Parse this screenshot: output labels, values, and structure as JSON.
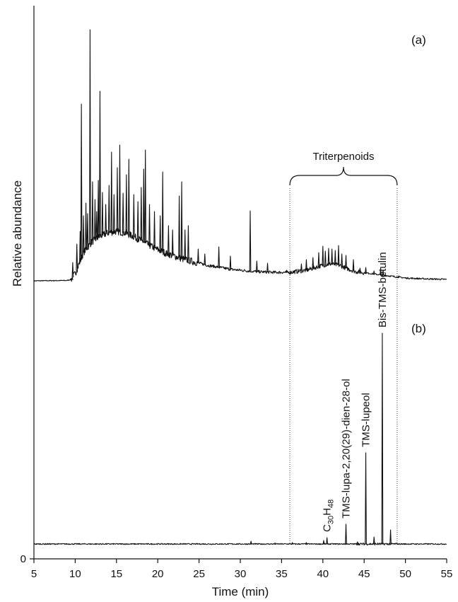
{
  "chart_data": {
    "type": "line",
    "xlabel": "Time (min)",
    "ylabel": "Relative abundance",
    "xlim": [
      5,
      55
    ],
    "x_ticks": [
      "5",
      "10",
      "15",
      "20",
      "25",
      "30",
      "35",
      "40",
      "45",
      "50",
      "55"
    ],
    "y_tick_labels": [
      "0"
    ],
    "grid": false,
    "region": {
      "label": "Triterpenoids",
      "x_start": 36,
      "x_end": 49
    },
    "series": [
      {
        "name": "(a)",
        "baseline": 0,
        "hump": [
          [
            5.0,
            0
          ],
          [
            9.0,
            0.5
          ],
          [
            9.5,
            2
          ],
          [
            10.0,
            10
          ],
          [
            10.5,
            25
          ],
          [
            11.0,
            40
          ],
          [
            12.0,
            55
          ],
          [
            13.0,
            63
          ],
          [
            14.0,
            68
          ],
          [
            15.0,
            70
          ],
          [
            16.0,
            68
          ],
          [
            17.0,
            63
          ],
          [
            18.0,
            57
          ],
          [
            19.0,
            50
          ],
          [
            20.0,
            44
          ],
          [
            21.0,
            39
          ],
          [
            22.0,
            35
          ],
          [
            23.0,
            31
          ],
          [
            24.0,
            28
          ],
          [
            25.0,
            25
          ],
          [
            26.0,
            22
          ],
          [
            27.0,
            20
          ],
          [
            28.0,
            18
          ],
          [
            29.0,
            16
          ],
          [
            30.0,
            15
          ],
          [
            32.0,
            13
          ],
          [
            34.0,
            12
          ],
          [
            36.0,
            12
          ],
          [
            38.0,
            15
          ],
          [
            40.0,
            22
          ],
          [
            41.0,
            24
          ],
          [
            42.0,
            22
          ],
          [
            43.0,
            17
          ],
          [
            44.0,
            13
          ],
          [
            46.0,
            10
          ],
          [
            48.0,
            7
          ],
          [
            50.0,
            4
          ],
          [
            52.0,
            3
          ],
          [
            55.0,
            2
          ]
        ],
        "peaks": [
          [
            9.7,
            26
          ],
          [
            10.2,
            52
          ],
          [
            10.6,
            70
          ],
          [
            10.75,
            250
          ],
          [
            11.0,
            92
          ],
          [
            11.3,
            110
          ],
          [
            11.5,
            95
          ],
          [
            11.8,
            355
          ],
          [
            12.1,
            140
          ],
          [
            12.4,
            115
          ],
          [
            12.6,
            98
          ],
          [
            12.8,
            142
          ],
          [
            13.0,
            268
          ],
          [
            13.3,
            125
          ],
          [
            13.7,
            108
          ],
          [
            14.1,
            135
          ],
          [
            14.4,
            182
          ],
          [
            14.7,
            122
          ],
          [
            15.1,
            160
          ],
          [
            15.4,
            192
          ],
          [
            15.8,
            124
          ],
          [
            16.2,
            150
          ],
          [
            16.5,
            172
          ],
          [
            17.1,
            122
          ],
          [
            17.6,
            112
          ],
          [
            18.0,
            132
          ],
          [
            18.3,
            158
          ],
          [
            18.5,
            185
          ],
          [
            19.0,
            108
          ],
          [
            19.6,
            98
          ],
          [
            20.3,
            92
          ],
          [
            20.6,
            154
          ],
          [
            21.3,
            78
          ],
          [
            21.8,
            72
          ],
          [
            22.6,
            120
          ],
          [
            22.9,
            140
          ],
          [
            23.3,
            72
          ],
          [
            23.7,
            78
          ],
          [
            24.9,
            45
          ],
          [
            25.7,
            38
          ],
          [
            27.4,
            48
          ],
          [
            28.8,
            35
          ],
          [
            31.2,
            99
          ],
          [
            32.0,
            28
          ],
          [
            33.3,
            25
          ],
          [
            35.6,
            15
          ],
          [
            37.4,
            24
          ],
          [
            38.0,
            30
          ],
          [
            38.8,
            33
          ],
          [
            39.5,
            40
          ],
          [
            40.0,
            49
          ],
          [
            40.3,
            42
          ],
          [
            40.7,
            46
          ],
          [
            41.1,
            45
          ],
          [
            41.5,
            43
          ],
          [
            41.9,
            50
          ],
          [
            42.3,
            38
          ],
          [
            42.8,
            36
          ],
          [
            43.7,
            30
          ],
          [
            44.5,
            18
          ],
          [
            45.2,
            19
          ],
          [
            46.2,
            14
          ],
          [
            47.0,
            18
          ],
          [
            47.3,
            15
          ],
          [
            49.2,
            7
          ]
        ]
      },
      {
        "name": "(b)",
        "baseline": 0,
        "hump": [
          [
            5.0,
            0
          ],
          [
            55.0,
            0
          ]
        ],
        "peaks": [
          [
            31.3,
            4
          ],
          [
            34.2,
            1.5
          ],
          [
            36.3,
            2
          ],
          [
            38.0,
            2
          ],
          [
            40.1,
            5
          ],
          [
            40.5,
            9
          ],
          [
            42.8,
            28
          ],
          [
            44.2,
            3
          ],
          [
            45.2,
            129
          ],
          [
            46.2,
            10
          ],
          [
            47.2,
            298
          ],
          [
            48.2,
            20
          ]
        ],
        "annotations": [
          {
            "x": 40.5,
            "label_main": "C",
            "label_sub1": "30",
            "label_mid": "H",
            "label_sub2": "48"
          },
          {
            "x": 42.8,
            "label": "TMS-lupa-2,20(29)-dien-28-ol"
          },
          {
            "x": 45.2,
            "label": "TMS-lupeol"
          },
          {
            "x": 47.2,
            "label": "Bis-TMS-betulin"
          }
        ]
      }
    ]
  }
}
